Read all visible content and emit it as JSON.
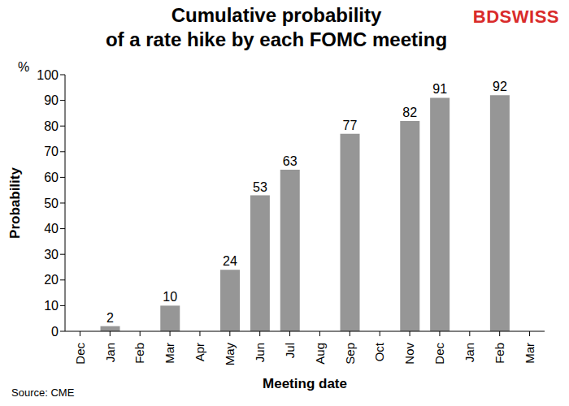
{
  "chart_data": {
    "type": "bar",
    "title": "Cumulative probability\nof a rate hike by each FOMC meeting",
    "brand": "BDSWISS",
    "source": "Source: CME",
    "y_unit": "%",
    "xlabel": "Meeting date",
    "ylabel": "Probability",
    "categories": [
      "Dec",
      "Jan",
      "Feb",
      "Mar",
      "Apr",
      "May",
      "Jun",
      "Jul",
      "Aug",
      "Sep",
      "Oct",
      "Nov",
      "Dec",
      "Jan",
      "Feb",
      "Mar"
    ],
    "values": [
      0,
      2,
      null,
      10,
      null,
      24,
      53,
      63,
      null,
      77,
      null,
      82,
      91,
      null,
      92,
      null
    ],
    "color": "#969696",
    "ylim": [
      0,
      100
    ],
    "yticks": [
      0,
      10,
      20,
      30,
      40,
      50,
      60,
      70,
      80,
      90,
      100
    ],
    "grid": false,
    "data_labels": true
  }
}
